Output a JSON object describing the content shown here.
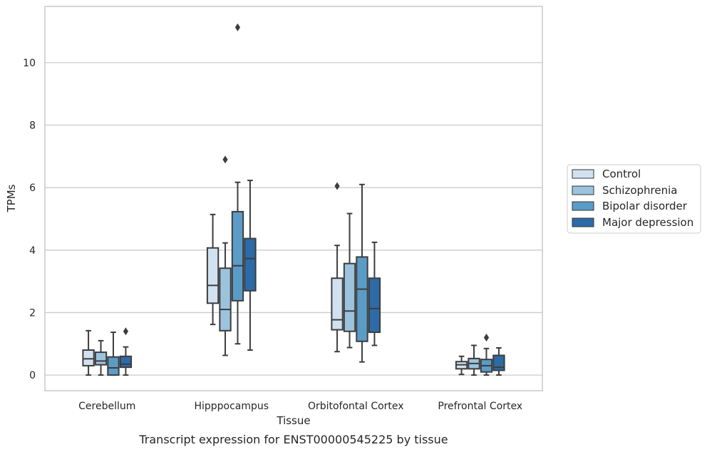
{
  "caption": "Transcript expression for ENST00000545225 by tissue",
  "chart_data": {
    "type": "boxplot",
    "xlabel": "Tissue",
    "ylabel": "TPMs",
    "ylim": [
      -0.5,
      11.8
    ],
    "yticks": [
      0,
      2,
      4,
      6,
      8,
      10
    ],
    "grid": true,
    "legend_position": "right",
    "categories": [
      "Cerebellum",
      "Hipppocampus",
      "Orbitofontal Cortex",
      "Prefrontal Cortex"
    ],
    "series": [
      {
        "name": "Control",
        "color": "#d1e1f0",
        "boxes": [
          {
            "whislo": 0.0,
            "q1": 0.3,
            "med": 0.52,
            "q3": 0.8,
            "whishi": 1.42,
            "fliers": []
          },
          {
            "whislo": 1.62,
            "q1": 2.3,
            "med": 2.87,
            "q3": 4.07,
            "whishi": 5.14,
            "fliers": []
          },
          {
            "whislo": 0.75,
            "q1": 1.45,
            "med": 1.77,
            "q3": 3.1,
            "whishi": 4.15,
            "fliers": [
              6.05
            ]
          },
          {
            "whislo": 0.02,
            "q1": 0.2,
            "med": 0.33,
            "q3": 0.43,
            "whishi": 0.6,
            "fliers": []
          }
        ]
      },
      {
        "name": "Schizophrenia",
        "color": "#9cc3de",
        "boxes": [
          {
            "whislo": 0.0,
            "q1": 0.33,
            "med": 0.45,
            "q3": 0.73,
            "whishi": 1.1,
            "fliers": []
          },
          {
            "whislo": 0.63,
            "q1": 1.42,
            "med": 2.1,
            "q3": 3.42,
            "whishi": 4.23,
            "fliers": [
              6.9
            ]
          },
          {
            "whislo": 0.88,
            "q1": 1.4,
            "med": 2.05,
            "q3": 3.57,
            "whishi": 5.17,
            "fliers": []
          },
          {
            "whislo": 0.0,
            "q1": 0.2,
            "med": 0.37,
            "q3": 0.53,
            "whishi": 0.95,
            "fliers": []
          }
        ]
      },
      {
        "name": "Bipolar disorder",
        "color": "#5b9cc7",
        "boxes": [
          {
            "whislo": 0.0,
            "q1": 0.0,
            "med": 0.23,
            "q3": 0.58,
            "whishi": 1.37,
            "fliers": []
          },
          {
            "whislo": 1.0,
            "q1": 2.38,
            "med": 3.5,
            "q3": 5.23,
            "whishi": 6.17,
            "fliers": [
              11.13
            ]
          },
          {
            "whislo": 0.42,
            "q1": 1.08,
            "med": 2.75,
            "q3": 3.78,
            "whishi": 6.1,
            "fliers": []
          },
          {
            "whislo": 0.0,
            "q1": 0.1,
            "med": 0.3,
            "q3": 0.5,
            "whishi": 0.85,
            "fliers": [
              1.2
            ]
          }
        ]
      },
      {
        "name": "Major depression",
        "color": "#2d6ba8",
        "boxes": [
          {
            "whislo": 0.0,
            "q1": 0.25,
            "med": 0.35,
            "q3": 0.6,
            "whishi": 0.9,
            "fliers": [
              1.4
            ]
          },
          {
            "whislo": 0.8,
            "q1": 2.7,
            "med": 3.73,
            "q3": 4.37,
            "whishi": 6.23,
            "fliers": []
          },
          {
            "whislo": 0.95,
            "q1": 1.37,
            "med": 2.13,
            "q3": 3.1,
            "whishi": 4.25,
            "fliers": []
          },
          {
            "whislo": 0.0,
            "q1": 0.15,
            "med": 0.25,
            "q3": 0.63,
            "whishi": 0.87,
            "fliers": []
          }
        ]
      }
    ]
  }
}
